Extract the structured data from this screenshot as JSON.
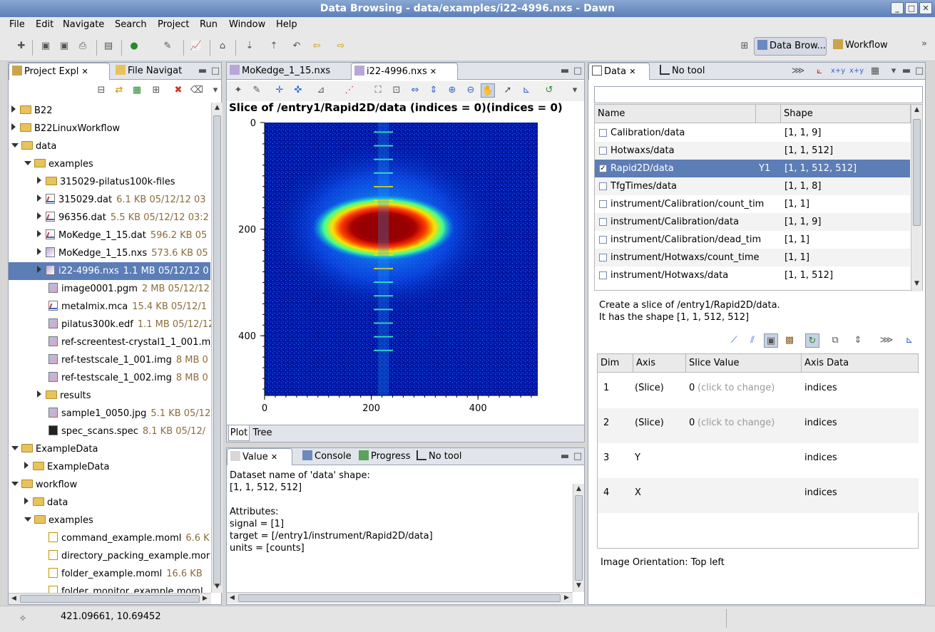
{
  "window": {
    "title": "Data Browsing - data/examples/i22-4996.nxs - Dawn"
  },
  "menu": [
    "File",
    "Edit",
    "Navigate",
    "Search",
    "Project",
    "Run",
    "Window",
    "Help"
  ],
  "perspectives": [
    {
      "label": "Data Brow..."
    },
    {
      "label": "Workflow"
    }
  ],
  "project_explorer": {
    "tabs": [
      {
        "label": "Project Expl"
      },
      {
        "label": "File Navigat"
      }
    ],
    "items": [
      {
        "label": "B22",
        "meta": ""
      },
      {
        "label": "B22LinuxWorkflow",
        "meta": ""
      },
      {
        "label": "data",
        "meta": ""
      },
      {
        "label": "examples",
        "meta": ""
      },
      {
        "label": "315029-pilatus100k-files",
        "meta": ""
      },
      {
        "label": "315029.dat",
        "meta": "6.1 KB  05/12/12 03"
      },
      {
        "label": "96356.dat",
        "meta": "5.5 KB  05/12/12 03:2"
      },
      {
        "label": "MoKedge_1_15.dat",
        "meta": "596.2 KB  05"
      },
      {
        "label": "MoKedge_1_15.nxs",
        "meta": "573.6 KB  05"
      },
      {
        "label": "i22-4996.nxs",
        "meta": "1.1 MB  05/12/12 0"
      },
      {
        "label": "image0001.pgm",
        "meta": "2 MB  05/12/12"
      },
      {
        "label": "metalmix.mca",
        "meta": "15.4 KB  05/12/1"
      },
      {
        "label": "pilatus300k.edf",
        "meta": "1.1 MB  05/12/12"
      },
      {
        "label": "ref-screentest-crystal1_1_001.m",
        "meta": ""
      },
      {
        "label": "ref-testscale_1_001.img",
        "meta": "8 MB  0"
      },
      {
        "label": "ref-testscale_1_002.img",
        "meta": "8 MB  0"
      },
      {
        "label": "results",
        "meta": ""
      },
      {
        "label": "sample1_0050.jpg",
        "meta": "5.1 KB  05/12"
      },
      {
        "label": "spec_scans.spec",
        "meta": "8.1 KB  05/12/"
      },
      {
        "label": "ExampleData",
        "meta": ""
      },
      {
        "label": "ExampleData",
        "meta": ""
      },
      {
        "label": "workflow",
        "meta": ""
      },
      {
        "label": "data",
        "meta": ""
      },
      {
        "label": "examples",
        "meta": ""
      },
      {
        "label": "command_example.moml",
        "meta": "6.6 K"
      },
      {
        "label": "directory_packing_example.mor",
        "meta": ""
      },
      {
        "label": "folder_example.moml",
        "meta": "16.6 KB"
      },
      {
        "label": "folder_monitor_example.moml",
        "meta": ""
      }
    ]
  },
  "editor": {
    "tabs": [
      {
        "label": "MoKedge_1_15.nxs"
      },
      {
        "label": "i22-4996.nxs"
      }
    ],
    "plot_title": "Slice of /entry1/Rapid2D/data (indices = 0)(indices = 0)",
    "bottom_tabs": [
      {
        "label": "Plot"
      },
      {
        "label": "Tree"
      }
    ]
  },
  "chart_data": {
    "type": "heatmap",
    "title": "Slice of /entry1/Rapid2D/data (indices = 0)(indices = 0)",
    "xlabel": "",
    "ylabel": "",
    "xlim": [
      0,
      512
    ],
    "ylim": [
      0,
      512
    ],
    "y_inverted": true,
    "x_ticks": [
      "0",
      "200",
      "400"
    ],
    "y_ticks": [
      "0",
      "200",
      "400"
    ],
    "colormap": "jet"
  },
  "value_panel": {
    "tabs": [
      {
        "label": "Value"
      },
      {
        "label": "Console"
      },
      {
        "label": "Progress"
      },
      {
        "label": "No tool"
      }
    ],
    "lines": [
      "Dataset name of 'data' shape:",
      "[1, 1, 512, 512]",
      "",
      "Attributes:",
      "signal = [1]",
      "target = [/entry1/instrument/Rapid2D/data]",
      "units = [counts]"
    ]
  },
  "data_panel": {
    "tabs": [
      {
        "label": "Data"
      },
      {
        "label": "No tool"
      }
    ],
    "columns": [
      "Name",
      "",
      "Shape"
    ],
    "rows": [
      {
        "name": "Calibration/data",
        "axis": "",
        "shape": "[1, 1, 9]",
        "checked": false
      },
      {
        "name": "Hotwaxs/data",
        "axis": "",
        "shape": "[1, 1, 512]",
        "checked": false
      },
      {
        "name": "Rapid2D/data",
        "axis": "Y1",
        "shape": "[1, 1, 512, 512]",
        "checked": true
      },
      {
        "name": "TfgTimes/data",
        "axis": "",
        "shape": "[1, 1, 8]",
        "checked": false
      },
      {
        "name": "instrument/Calibration/count_tim",
        "axis": "",
        "shape": "[1, 1]",
        "checked": false
      },
      {
        "name": "instrument/Calibration/data",
        "axis": "",
        "shape": "[1, 1, 9]",
        "checked": false
      },
      {
        "name": "instrument/Calibration/dead_tim",
        "axis": "",
        "shape": "[1, 1]",
        "checked": false
      },
      {
        "name": "instrument/Hotwaxs/count_time",
        "axis": "",
        "shape": "[1, 1]",
        "checked": false
      },
      {
        "name": "instrument/Hotwaxs/data",
        "axis": "",
        "shape": "[1, 1, 512]",
        "checked": false
      }
    ],
    "slice_info_1": "Create a slice of /entry1/Rapid2D/data.",
    "slice_info_2": "It has the shape [1, 1, 512, 512]",
    "slice_columns": [
      "Dim",
      "Axis",
      "Slice Value",
      "Axis Data"
    ],
    "slice_rows": [
      {
        "dim": "1",
        "axis": "(Slice)",
        "value": "0",
        "hint": "(click to change)",
        "axis_data": "indices"
      },
      {
        "dim": "2",
        "axis": "(Slice)",
        "value": "0",
        "hint": "(click to change)",
        "axis_data": "indices"
      },
      {
        "dim": "3",
        "axis": "Y",
        "value": "",
        "hint": "",
        "axis_data": "indices"
      },
      {
        "dim": "4",
        "axis": "X",
        "value": "",
        "hint": "",
        "axis_data": "indices"
      }
    ],
    "orientation": "Image Orientation: Top left"
  },
  "status": {
    "coords": "421.09661, 10.69452"
  }
}
